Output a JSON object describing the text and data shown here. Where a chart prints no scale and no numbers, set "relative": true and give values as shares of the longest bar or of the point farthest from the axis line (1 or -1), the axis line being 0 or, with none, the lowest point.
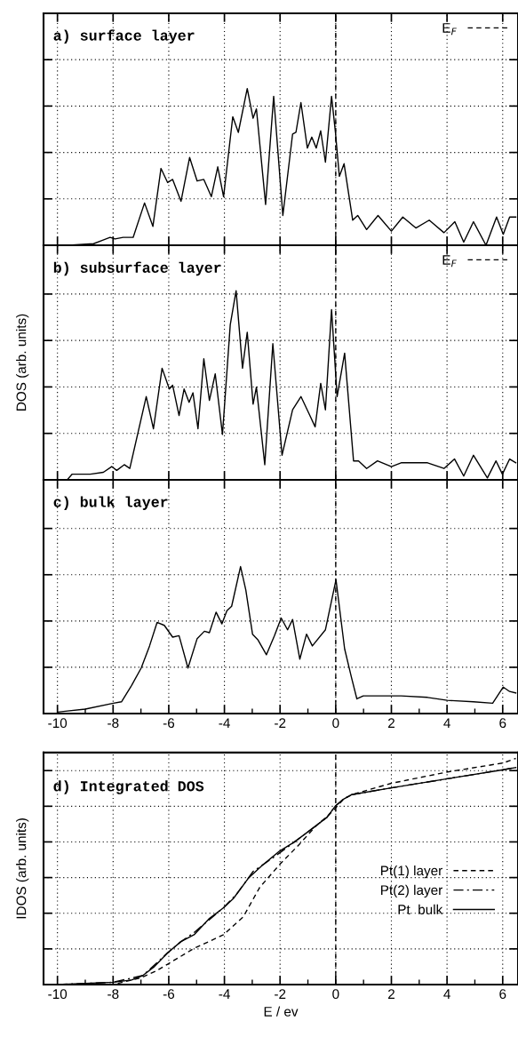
{
  "chart_data": [
    {
      "type": "line",
      "title": "a) surface layer",
      "relative": true,
      "xlim": [
        -10.5,
        6.55
      ],
      "xticks": [
        -10,
        -8,
        -6,
        -4,
        -2,
        0,
        2,
        4,
        6
      ],
      "grid": true,
      "tick_labels": false,
      "legend": "top right",
      "ref_lines": [
        {
          "axis": "x",
          "value": 0,
          "label": "E$_{F}$",
          "line_style": "dashed",
          "color": "#000000"
        }
      ],
      "x": [
        -9.59,
        -8.7,
        -8.4,
        -8.11,
        -7.93,
        -7.64,
        -7.28,
        -6.87,
        -6.57,
        -6.28,
        -6.04,
        -5.86,
        -5.56,
        -5.25,
        -4.98,
        -4.74,
        -4.47,
        -4.24,
        -4.03,
        -3.7,
        -3.5,
        -3.18,
        -2.97,
        -2.85,
        -2.52,
        -2.23,
        -1.9,
        -1.55,
        -1.43,
        -1.25,
        -1.02,
        -0.86,
        -0.7,
        -0.54,
        -0.37,
        -0.15,
        -0.01,
        0.13,
        0.3,
        0.61,
        0.79,
        1.11,
        1.52,
        2.0,
        2.41,
        2.88,
        3.36,
        3.89,
        4.28,
        4.6,
        4.95,
        5.4,
        5.78,
        6.02,
        6.25,
        6.47
      ],
      "series": [
        {
          "color": "#000000",
          "line_style": "solid",
          "values": [
            0.0,
            0.01,
            0.03,
            0.05,
            0.04,
            0.05,
            0.05,
            0.27,
            0.12,
            0.49,
            0.4,
            0.42,
            0.28,
            0.56,
            0.41,
            0.42,
            0.31,
            0.5,
            0.31,
            0.82,
            0.72,
            1.0,
            0.81,
            0.87,
            0.26,
            0.95,
            0.19,
            0.71,
            0.72,
            0.91,
            0.62,
            0.69,
            0.62,
            0.73,
            0.53,
            0.95,
            0.72,
            0.44,
            0.52,
            0.16,
            0.19,
            0.1,
            0.19,
            0.09,
            0.18,
            0.11,
            0.16,
            0.08,
            0.15,
            0.02,
            0.15,
            0.0,
            0.18,
            0.07,
            0.18,
            0.18
          ]
        }
      ]
    },
    {
      "type": "line",
      "title": "b) subsurface layer",
      "ylabel": "DOS (arb. units)",
      "relative": true,
      "xlim": [
        -10.5,
        6.55
      ],
      "xticks": [
        -10,
        -8,
        -6,
        -4,
        -2,
        0,
        2,
        4,
        6
      ],
      "grid": true,
      "tick_labels": false,
      "legend": "top right",
      "ref_lines": [
        {
          "axis": "x",
          "value": 0,
          "label": "E$_{F}$",
          "line_style": "dashed",
          "color": "#000000"
        }
      ],
      "x": [
        -9.65,
        -9.47,
        -8.82,
        -8.35,
        -8.05,
        -7.87,
        -7.6,
        -7.4,
        -6.81,
        -6.55,
        -6.24,
        -5.98,
        -5.86,
        -5.63,
        -5.45,
        -5.27,
        -5.13,
        -4.95,
        -4.74,
        -4.54,
        -4.33,
        -4.07,
        -3.79,
        -3.58,
        -3.35,
        -3.18,
        -2.97,
        -2.85,
        -2.55,
        -2.26,
        -1.93,
        -1.55,
        -1.25,
        -0.96,
        -0.74,
        -0.54,
        -0.37,
        -0.15,
        0.05,
        0.32,
        0.64,
        0.82,
        1.11,
        1.5,
        2.0,
        2.35,
        3.3,
        3.89,
        4.27,
        4.6,
        4.95,
        5.45,
        5.76,
        5.99,
        6.25,
        6.47
      ],
      "series": [
        {
          "color": "#000000",
          "line_style": "solid",
          "values": [
            0.0,
            0.03,
            0.03,
            0.04,
            0.07,
            0.05,
            0.08,
            0.06,
            0.44,
            0.27,
            0.59,
            0.48,
            0.5,
            0.34,
            0.48,
            0.41,
            0.46,
            0.27,
            0.64,
            0.42,
            0.56,
            0.24,
            0.82,
            1.0,
            0.59,
            0.78,
            0.4,
            0.49,
            0.08,
            0.72,
            0.13,
            0.37,
            0.44,
            0.35,
            0.28,
            0.51,
            0.37,
            0.9,
            0.44,
            0.67,
            0.1,
            0.1,
            0.06,
            0.1,
            0.07,
            0.09,
            0.09,
            0.06,
            0.11,
            0.02,
            0.13,
            0.01,
            0.1,
            0.03,
            0.11,
            0.09
          ]
        }
      ]
    },
    {
      "type": "line",
      "title": "c) bulk layer",
      "relative": true,
      "xlim": [
        -10.5,
        6.55
      ],
      "xticks": [
        -10,
        -8,
        -6,
        -4,
        -2,
        0,
        2,
        4,
        6
      ],
      "grid": true,
      "tick_labels": "x",
      "ref_lines": [
        {
          "axis": "x",
          "value": 0,
          "line_style": "dashed",
          "color": "#000000"
        }
      ],
      "x": [
        -10.0,
        -9.0,
        -7.99,
        -7.7,
        -7.34,
        -6.99,
        -6.69,
        -6.42,
        -6.16,
        -5.86,
        -5.63,
        -5.31,
        -4.98,
        -4.72,
        -4.54,
        -4.3,
        -4.09,
        -3.91,
        -3.74,
        -3.42,
        -3.23,
        -2.99,
        -2.79,
        -2.49,
        -2.2,
        -1.96,
        -1.73,
        -1.55,
        -1.29,
        -1.05,
        -0.84,
        -0.37,
        0.01,
        0.32,
        0.56,
        0.76,
        0.99,
        2.35,
        3.3,
        4.01,
        4.95,
        5.64,
        6.02,
        6.25,
        6.47
      ],
      "series": [
        {
          "color": "#000000",
          "line_style": "solid",
          "values": [
            0.01,
            0.03,
            0.07,
            0.08,
            0.19,
            0.31,
            0.46,
            0.62,
            0.6,
            0.52,
            0.53,
            0.31,
            0.51,
            0.56,
            0.55,
            0.69,
            0.61,
            0.7,
            0.73,
            1.0,
            0.84,
            0.54,
            0.5,
            0.4,
            0.53,
            0.65,
            0.57,
            0.64,
            0.37,
            0.54,
            0.46,
            0.57,
            0.91,
            0.44,
            0.25,
            0.1,
            0.12,
            0.12,
            0.11,
            0.09,
            0.08,
            0.07,
            0.18,
            0.15,
            0.14
          ]
        }
      ]
    },
    {
      "type": "line",
      "title": "d) Integrated DOS",
      "ylabel": "IDOS (arb. units)",
      "xlabel": "E / ev",
      "relative": true,
      "xlim": [
        -10.5,
        6.55
      ],
      "xticks": [
        -10,
        -8,
        -6,
        -4,
        -2,
        0,
        2,
        4,
        6
      ],
      "grid": true,
      "tick_labels": "x",
      "legend": "lower right",
      "ref_lines": [
        {
          "axis": "x",
          "value": 0,
          "line_style": "dashed",
          "color": "#000000"
        }
      ],
      "series": [
        {
          "name": "Pt(1) layer",
          "color": "#000000",
          "line_style": "dashed",
          "x": [
            -10,
            -8,
            -7.0,
            -6.45,
            -6.04,
            -5.09,
            -4.03,
            -3.32,
            -2.73,
            -2.02,
            -1.31,
            -0.72,
            -0.25,
            -0.01,
            0.28,
            0.58,
            2.0,
            4.01,
            6.02,
            6.47
          ],
          "values": [
            0,
            0.0,
            0.03,
            0.06,
            0.09,
            0.16,
            0.22,
            0.3,
            0.43,
            0.53,
            0.62,
            0.7,
            0.75,
            0.78,
            0.82,
            0.84,
            0.89,
            0.94,
            0.98,
            1.0
          ]
        },
        {
          "name": "Pt(2) layer",
          "color": "#000000",
          "line_style": "dashdot",
          "x": [
            -10,
            -8,
            -6.93,
            -6.04,
            -5.56,
            -5.09,
            -4.03,
            -3.56,
            -2.97,
            -2.26,
            -1.49,
            -0.84,
            -0.31,
            -0.01,
            0.28,
            0.58,
            2.0,
            4.01,
            6.02,
            6.47
          ],
          "values": [
            0,
            0.01,
            0.04,
            0.14,
            0.19,
            0.23,
            0.34,
            0.4,
            0.5,
            0.56,
            0.63,
            0.69,
            0.74,
            0.79,
            0.82,
            0.84,
            0.87,
            0.91,
            0.95,
            0.96
          ]
        },
        {
          "name": "Pt  bulk",
          "color": "#000000",
          "line_style": "solid",
          "x": [
            -10,
            -8,
            -7.34,
            -6.93,
            -6.51,
            -6.04,
            -5.56,
            -5.09,
            -4.56,
            -4.03,
            -3.68,
            -3.14,
            -2.61,
            -2.02,
            -1.49,
            -0.84,
            -0.31,
            -0.01,
            0.28,
            0.58,
            2.0,
            4.01,
            6.02,
            6.47
          ],
          "values": [
            0,
            0.01,
            0.02,
            0.04,
            0.08,
            0.14,
            0.19,
            0.22,
            0.29,
            0.34,
            0.38,
            0.47,
            0.53,
            0.59,
            0.63,
            0.69,
            0.74,
            0.79,
            0.82,
            0.84,
            0.87,
            0.91,
            0.95,
            0.96
          ]
        }
      ]
    }
  ]
}
